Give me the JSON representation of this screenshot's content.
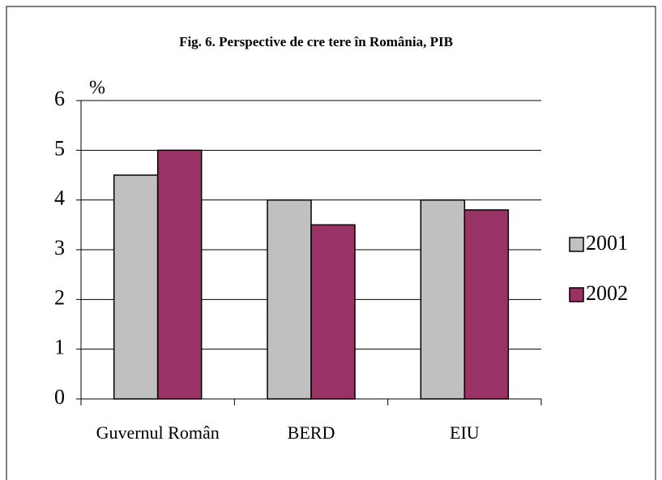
{
  "chart_data": {
    "type": "bar",
    "title": "Fig. 6. Perspective de cre tere în România, PIB",
    "y_label": "%",
    "categories": [
      "Guvernul Român",
      "BERD",
      "EIU"
    ],
    "series": [
      {
        "name": "2001",
        "color": "#c0c0c0",
        "values": [
          4.5,
          4,
          4
        ]
      },
      {
        "name": "2002",
        "color": "#993366",
        "values": [
          5,
          3.5,
          3.8
        ]
      }
    ],
    "ylim": [
      0,
      6
    ],
    "yticks": [
      0,
      1,
      2,
      3,
      4,
      5,
      6
    ],
    "grid": true,
    "legend": "right"
  }
}
